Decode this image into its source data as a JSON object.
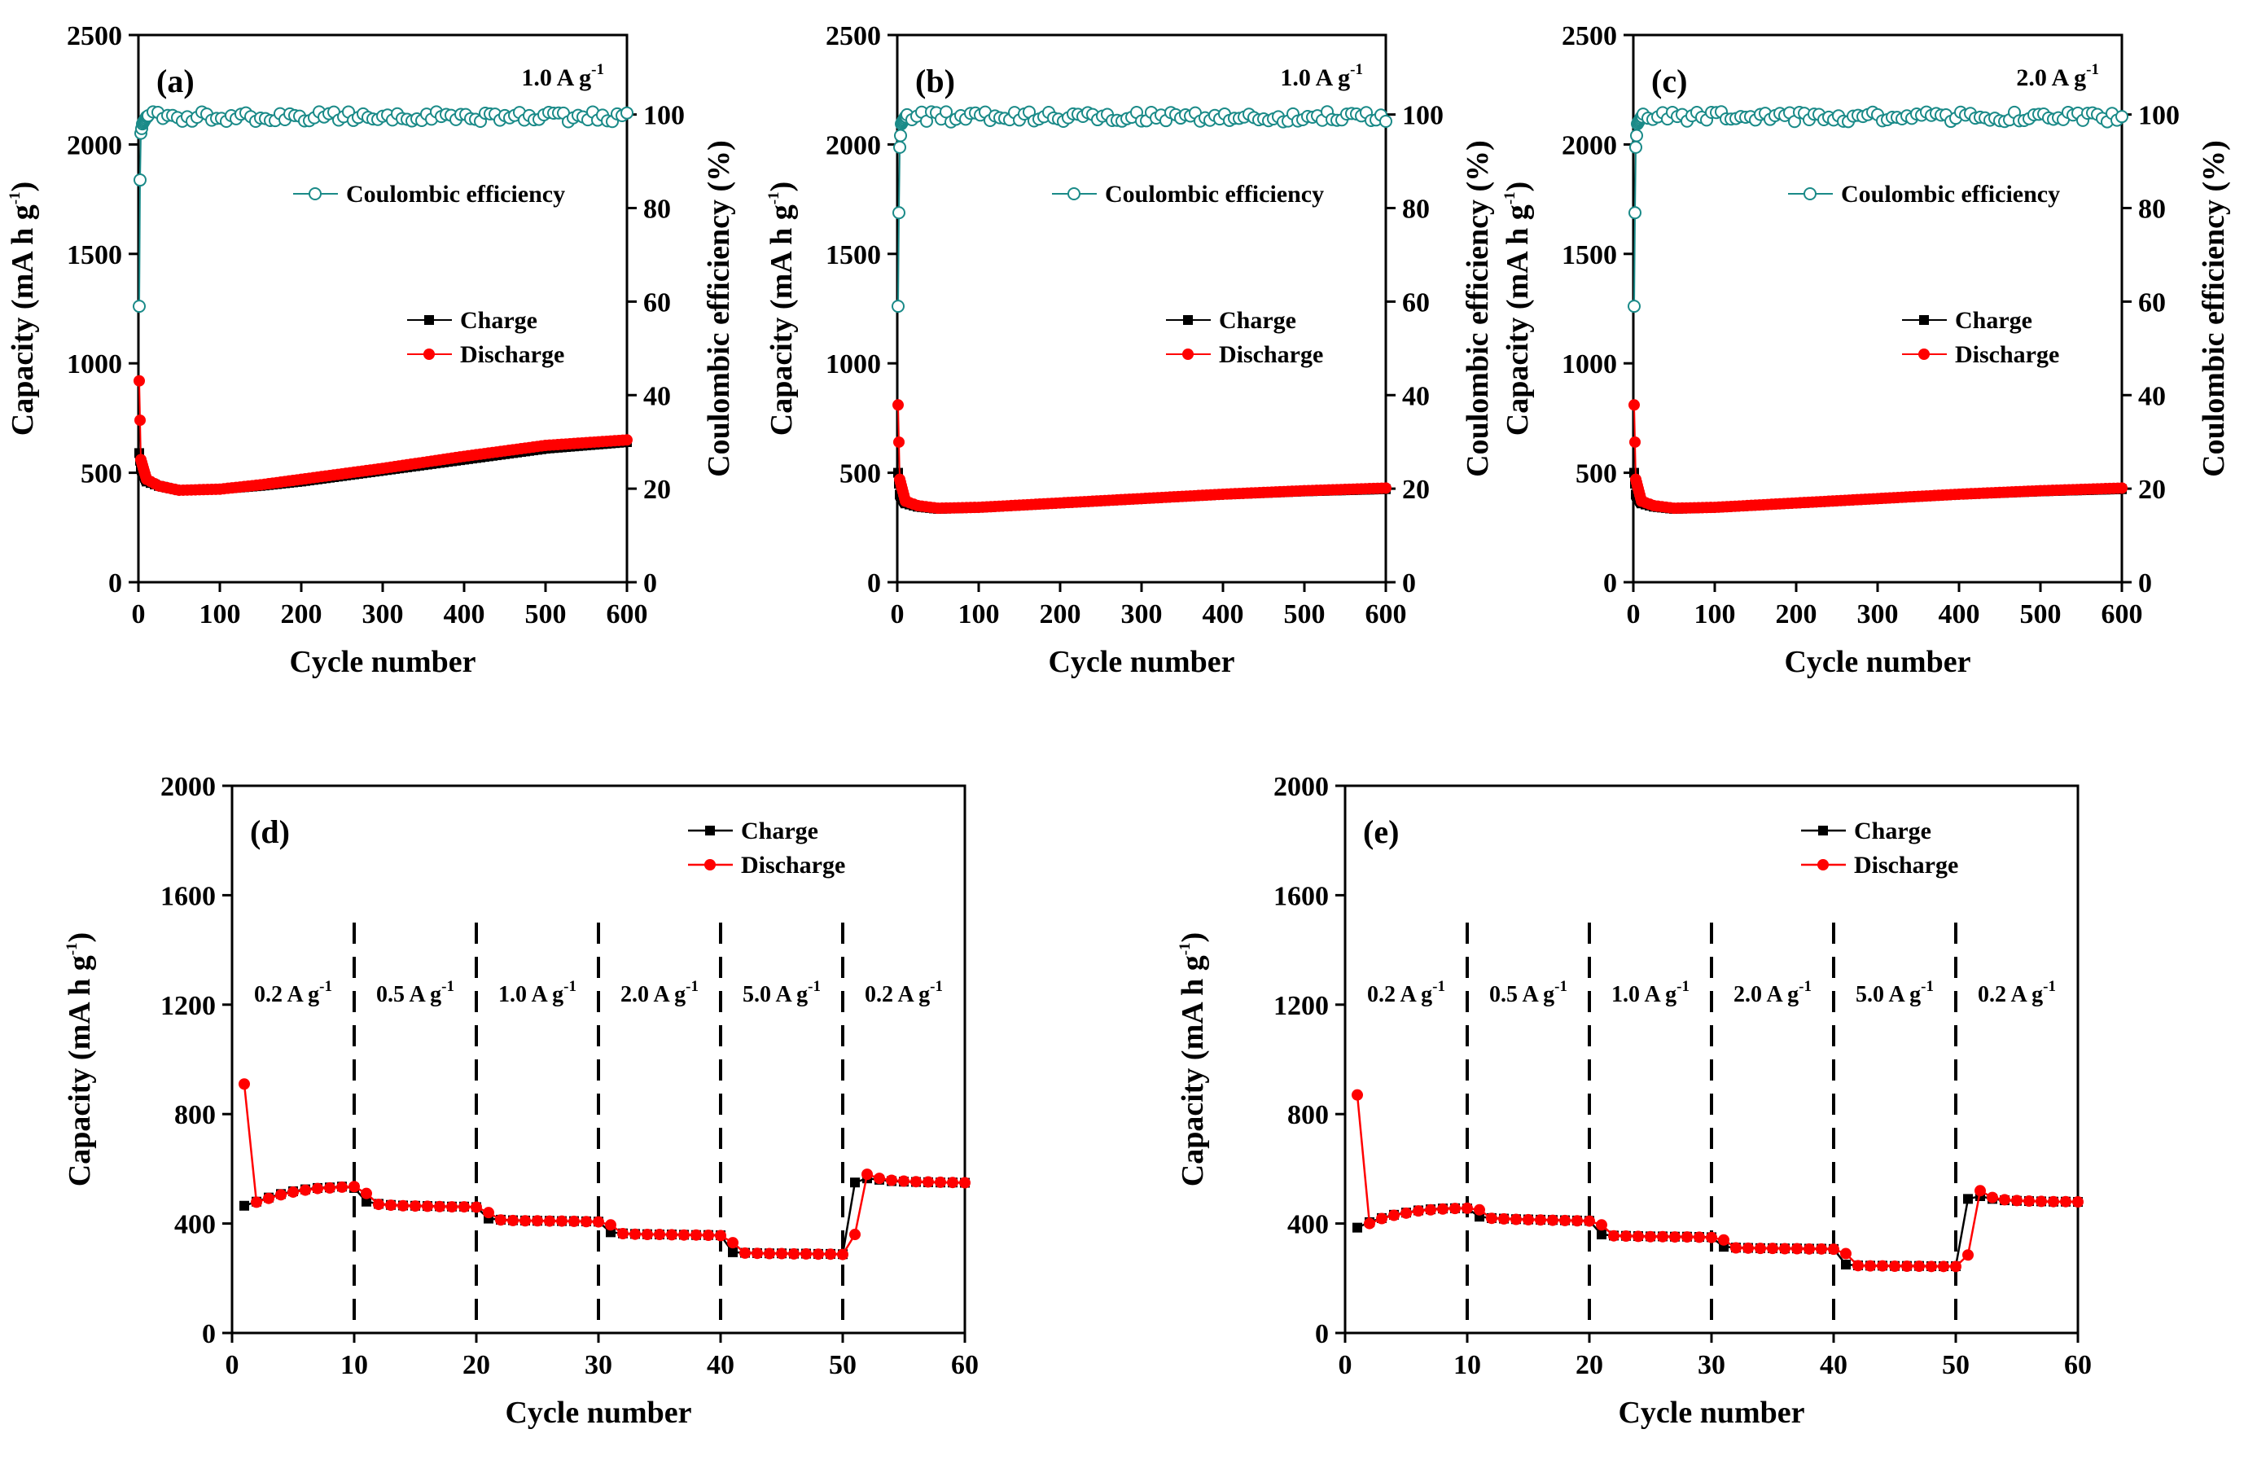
{
  "colors": {
    "charge": "#000000",
    "discharge": "#ff0000",
    "ce": "#1a8a88",
    "axis": "#000000"
  },
  "chart_data": [
    {
      "id": "a",
      "type": "line",
      "panel_label": "(a)",
      "current_density": "1.0 A g",
      "current_density_sup": "-1",
      "xlabel": "Cycle number",
      "ylabel": "Capacity (mA h g",
      "ylabel_sup": "-1",
      "ylabel_end": ")",
      "y2label": "Coulombic efficiency (%)",
      "xlim": [
        0,
        600
      ],
      "ylim": [
        0,
        2500
      ],
      "y2lim": [
        0,
        117
      ],
      "xticks": [
        "0",
        "100",
        "200",
        "300",
        "400",
        "500",
        "600"
      ],
      "yticks": [
        "0",
        "500",
        "1000",
        "1500",
        "2000",
        "2500"
      ],
      "y2ticks": [
        "0",
        "20",
        "40",
        "60",
        "80",
        "100"
      ],
      "legend": {
        "ce": "Coulombic efficiency",
        "charge": "Charge",
        "discharge": "Discharge"
      },
      "series": [
        {
          "name": "Charge",
          "axis": "left",
          "x": [
            1,
            3,
            10,
            25,
            50,
            100,
            150,
            200,
            300,
            400,
            500,
            600
          ],
          "values": [
            590,
            520,
            460,
            440,
            420,
            425,
            440,
            460,
            510,
            560,
            610,
            640
          ]
        },
        {
          "name": "Discharge",
          "axis": "left",
          "x": [
            1,
            3,
            10,
            25,
            50,
            100,
            150,
            200,
            300,
            400,
            500,
            600
          ],
          "values": [
            920,
            560,
            470,
            440,
            420,
            425,
            445,
            470,
            520,
            575,
            625,
            650
          ]
        },
        {
          "name": "Coulombic efficiency",
          "axis": "right",
          "x": [
            1,
            2,
            3,
            5,
            10,
            600
          ],
          "values": [
            59,
            86,
            96,
            98,
            99.5,
            99.5
          ]
        }
      ]
    },
    {
      "id": "b",
      "type": "line",
      "panel_label": "(b)",
      "current_density": "1.0 A g",
      "current_density_sup": "-1",
      "xlabel": "Cycle number",
      "ylabel": "Capacity (mA h g",
      "ylabel_sup": "-1",
      "ylabel_end": ")",
      "y2label": "Coulombic efficiency (%)",
      "xlim": [
        0,
        600
      ],
      "ylim": [
        0,
        2500
      ],
      "y2lim": [
        0,
        117
      ],
      "xticks": [
        "0",
        "100",
        "200",
        "300",
        "400",
        "500",
        "600"
      ],
      "yticks": [
        "0",
        "500",
        "1000",
        "1500",
        "2000",
        "2500"
      ],
      "y2ticks": [
        "0",
        "20",
        "40",
        "60",
        "80",
        "100"
      ],
      "legend": {
        "ce": "Coulombic efficiency",
        "charge": "Charge",
        "discharge": "Discharge"
      },
      "series": [
        {
          "name": "Charge",
          "axis": "left",
          "x": [
            1,
            3,
            10,
            25,
            50,
            100,
            150,
            200,
            300,
            400,
            500,
            600
          ],
          "values": [
            500,
            400,
            360,
            345,
            335,
            340,
            350,
            360,
            380,
            400,
            415,
            425
          ]
        },
        {
          "name": "Discharge",
          "axis": "left",
          "x": [
            1,
            3,
            10,
            25,
            50,
            100,
            150,
            200,
            300,
            400,
            500,
            600
          ],
          "values": [
            810,
            470,
            370,
            350,
            338,
            342,
            352,
            362,
            382,
            402,
            418,
            430
          ]
        },
        {
          "name": "Coulombic efficiency",
          "axis": "right",
          "x": [
            1,
            2,
            3,
            5,
            10,
            600
          ],
          "values": [
            59,
            79,
            93,
            98,
            99.5,
            99.5
          ]
        }
      ]
    },
    {
      "id": "c",
      "type": "line",
      "panel_label": "(c)",
      "current_density": "2.0 A g",
      "current_density_sup": "-1",
      "xlabel": "Cycle number",
      "ylabel": "Capacity (mA h g",
      "ylabel_sup": "-1",
      "ylabel_end": ")",
      "y2label": "Coulombic efficiency (%)",
      "xlim": [
        0,
        600
      ],
      "ylim": [
        0,
        2500
      ],
      "y2lim": [
        0,
        117
      ],
      "xticks": [
        "0",
        "100",
        "200",
        "300",
        "400",
        "500",
        "600"
      ],
      "yticks": [
        "0",
        "500",
        "1000",
        "1500",
        "2000",
        "2500"
      ],
      "y2ticks": [
        "0",
        "20",
        "40",
        "60",
        "80",
        "100"
      ],
      "legend": {
        "ce": "Coulombic efficiency",
        "charge": "Charge",
        "discharge": "Discharge"
      },
      "series": [
        {
          "name": "Charge",
          "axis": "left",
          "x": [
            1,
            3,
            10,
            25,
            50,
            100,
            150,
            200,
            300,
            400,
            500,
            600
          ],
          "values": [
            500,
            400,
            360,
            345,
            335,
            340,
            350,
            360,
            380,
            400,
            415,
            425
          ]
        },
        {
          "name": "Discharge",
          "axis": "left",
          "x": [
            1,
            3,
            10,
            25,
            50,
            100,
            150,
            200,
            300,
            400,
            500,
            600
          ],
          "values": [
            810,
            470,
            370,
            350,
            338,
            342,
            352,
            362,
            382,
            402,
            418,
            430
          ]
        },
        {
          "name": "Coulombic efficiency",
          "axis": "right",
          "x": [
            1,
            2,
            3,
            5,
            10,
            600
          ],
          "values": [
            59,
            79,
            93,
            98,
            99.5,
            99.5
          ]
        }
      ]
    },
    {
      "id": "d",
      "type": "line",
      "panel_label": "(d)",
      "xlabel": "Cycle number",
      "ylabel": "Capacity (mA h g",
      "ylabel_sup": "-1",
      "ylabel_end": ")",
      "xlim": [
        0,
        60
      ],
      "ylim": [
        0,
        2000
      ],
      "xticks": [
        "0",
        "10",
        "20",
        "30",
        "40",
        "50",
        "60"
      ],
      "yticks": [
        "0",
        "400",
        "800",
        "1200",
        "1600",
        "2000"
      ],
      "legend": {
        "charge": "Charge",
        "discharge": "Discharge"
      },
      "dividers": [
        10,
        20,
        30,
        40,
        50
      ],
      "rates": [
        {
          "text": "0.2 A g",
          "sup": "-1",
          "x_center": 5
        },
        {
          "text": "0.5 A g",
          "sup": "-1",
          "x_center": 15
        },
        {
          "text": "1.0 A g",
          "sup": "-1",
          "x_center": 25
        },
        {
          "text": "2.0 A g",
          "sup": "-1",
          "x_center": 35
        },
        {
          "text": "5.0 A g",
          "sup": "-1",
          "x_center": 45
        },
        {
          "text": "0.2 A g",
          "sup": "-1",
          "x_center": 55
        }
      ],
      "x": [
        1,
        2,
        3,
        4,
        5,
        6,
        7,
        8,
        9,
        10,
        11,
        12,
        13,
        14,
        15,
        16,
        17,
        18,
        19,
        20,
        21,
        22,
        23,
        24,
        25,
        26,
        27,
        28,
        29,
        30,
        31,
        32,
        33,
        34,
        35,
        36,
        37,
        38,
        39,
        40,
        41,
        42,
        43,
        44,
        45,
        46,
        47,
        48,
        49,
        50,
        51,
        52,
        53,
        54,
        55,
        56,
        57,
        58,
        59,
        60
      ],
      "series": [
        {
          "name": "Charge",
          "values": [
            465,
            480,
            495,
            508,
            518,
            525,
            530,
            532,
            535,
            530,
            480,
            472,
            468,
            466,
            465,
            464,
            463,
            462,
            462,
            460,
            418,
            414,
            412,
            411,
            410,
            410,
            409,
            409,
            408,
            407,
            368,
            364,
            362,
            361,
            360,
            360,
            359,
            358,
            358,
            357,
            295,
            293,
            292,
            291,
            291,
            290,
            290,
            289,
            289,
            288,
            550,
            565,
            560,
            555,
            553,
            552,
            551,
            550,
            550,
            549
          ]
        },
        {
          "name": "Discharge",
          "values": [
            910,
            478,
            492,
            505,
            515,
            522,
            528,
            530,
            533,
            535,
            510,
            470,
            467,
            465,
            464,
            463,
            462,
            461,
            461,
            460,
            440,
            413,
            411,
            410,
            410,
            409,
            409,
            408,
            407,
            406,
            395,
            363,
            361,
            360,
            360,
            359,
            358,
            358,
            357,
            356,
            330,
            292,
            291,
            290,
            290,
            289,
            289,
            288,
            288,
            287,
            360,
            580,
            565,
            558,
            555,
            553,
            552,
            551,
            550,
            549
          ]
        }
      ]
    },
    {
      "id": "e",
      "type": "line",
      "panel_label": "(e)",
      "xlabel": "Cycle number",
      "ylabel": "Capacity (mA h g",
      "ylabel_sup": "-1",
      "ylabel_end": ")",
      "xlim": [
        0,
        60
      ],
      "ylim": [
        0,
        2000
      ],
      "xticks": [
        "0",
        "10",
        "20",
        "30",
        "40",
        "50",
        "60"
      ],
      "yticks": [
        "0",
        "400",
        "800",
        "1200",
        "1600",
        "2000"
      ],
      "legend": {
        "charge": "Charge",
        "discharge": "Discharge"
      },
      "dividers": [
        10,
        20,
        30,
        40,
        50
      ],
      "rates": [
        {
          "text": "0.2 A g",
          "sup": "-1",
          "x_center": 5
        },
        {
          "text": "0.5 A g",
          "sup": "-1",
          "x_center": 15
        },
        {
          "text": "1.0 A g",
          "sup": "-1",
          "x_center": 25
        },
        {
          "text": "2.0 A g",
          "sup": "-1",
          "x_center": 35
        },
        {
          "text": "5.0 A g",
          "sup": "-1",
          "x_center": 45
        },
        {
          "text": "0.2 A g",
          "sup": "-1",
          "x_center": 55
        }
      ],
      "x": [
        1,
        2,
        3,
        4,
        5,
        6,
        7,
        8,
        9,
        10,
        11,
        12,
        13,
        14,
        15,
        16,
        17,
        18,
        19,
        20,
        21,
        22,
        23,
        24,
        25,
        26,
        27,
        28,
        29,
        30,
        31,
        32,
        33,
        34,
        35,
        36,
        37,
        38,
        39,
        40,
        41,
        42,
        43,
        44,
        45,
        46,
        47,
        48,
        49,
        50,
        51,
        52,
        53,
        54,
        55,
        56,
        57,
        58,
        59,
        60
      ],
      "series": [
        {
          "name": "Charge",
          "values": [
            385,
            405,
            420,
            432,
            440,
            448,
            452,
            455,
            456,
            455,
            425,
            420,
            418,
            416,
            415,
            414,
            413,
            412,
            411,
            410,
            360,
            356,
            355,
            354,
            353,
            353,
            352,
            352,
            351,
            350,
            315,
            312,
            311,
            310,
            310,
            309,
            309,
            308,
            308,
            307,
            250,
            247,
            246,
            246,
            245,
            245,
            245,
            244,
            244,
            244,
            490,
            500,
            490,
            485,
            483,
            482,
            481,
            480,
            480,
            479
          ]
        },
        {
          "name": "Discharge",
          "values": [
            870,
            400,
            418,
            430,
            438,
            446,
            450,
            453,
            455,
            456,
            450,
            419,
            417,
            415,
            414,
            413,
            412,
            411,
            410,
            409,
            395,
            355,
            354,
            353,
            352,
            352,
            351,
            351,
            350,
            349,
            340,
            311,
            310,
            309,
            309,
            308,
            308,
            307,
            307,
            306,
            290,
            246,
            245,
            245,
            244,
            244,
            244,
            243,
            243,
            243,
            285,
            520,
            495,
            487,
            484,
            482,
            481,
            480,
            480,
            479
          ]
        }
      ]
    }
  ]
}
